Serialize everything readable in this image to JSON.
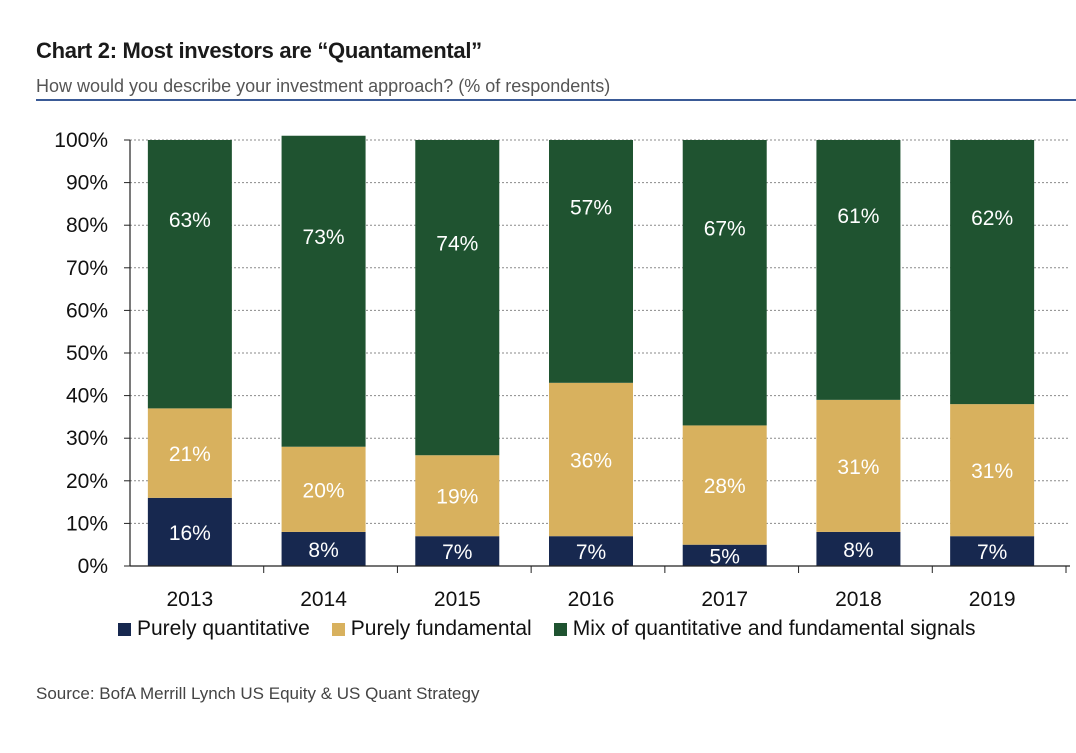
{
  "header": {
    "title": "Chart 2: Most investors are “Quantamental”",
    "subtitle": "How would you describe your investment approach? (% of respondents)"
  },
  "footer": {
    "source": "Source: BofA Merrill Lynch US Equity & US Quant Strategy"
  },
  "colors": {
    "quantitative": "#17284f",
    "fundamental": "#d8b15e",
    "mix": "#1f5330",
    "rule": "#3a5a96"
  },
  "chart_data": {
    "type": "bar",
    "stacked": true,
    "categories": [
      "2013",
      "2014",
      "2015",
      "2016",
      "2017",
      "2018",
      "2019"
    ],
    "series": [
      {
        "name": "Purely quantitative",
        "values": [
          16,
          8,
          7,
          7,
          5,
          8,
          7
        ],
        "color_key": "quantitative"
      },
      {
        "name": "Purely fundamental",
        "values": [
          21,
          20,
          19,
          36,
          28,
          31,
          31
        ],
        "color_key": "fundamental"
      },
      {
        "name": "Mix of quantitative and fundamental signals",
        "values": [
          63,
          73,
          74,
          57,
          67,
          61,
          62
        ],
        "color_key": "mix"
      }
    ],
    "ylim": [
      0,
      100
    ],
    "yticks": [
      "0%",
      "10%",
      "20%",
      "30%",
      "40%",
      "50%",
      "60%",
      "70%",
      "80%",
      "90%",
      "100%"
    ],
    "grid": true,
    "legend_position": "bottom",
    "xlabel": "",
    "ylabel": ""
  }
}
